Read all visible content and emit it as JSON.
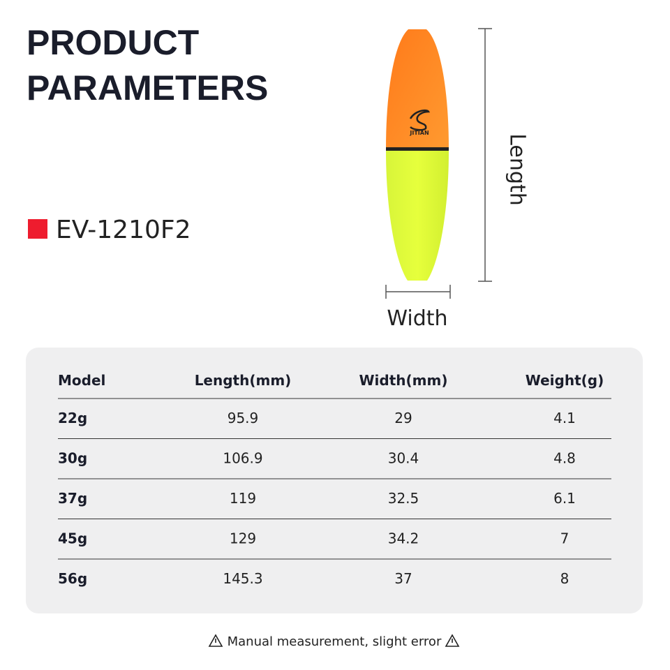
{
  "header": {
    "title_lines": [
      "PRODUCT",
      "PARAMETERS"
    ],
    "model": "EV-1210F2"
  },
  "product": {
    "logo_text": "JITIAN",
    "length_label": "Length",
    "width_label": "Width"
  },
  "table": {
    "columns": [
      "Model",
      "Length(mm)",
      "Width(mm)",
      "Weight(g)"
    ],
    "rows": [
      [
        "22g",
        "95.9",
        "29",
        "4.1"
      ],
      [
        "30g",
        "106.9",
        "30.4",
        "4.8"
      ],
      [
        "37g",
        "119",
        "32.5",
        "6.1"
      ],
      [
        "45g",
        "129",
        "34.2",
        "7"
      ],
      [
        "56g",
        "145.3",
        "37",
        "8"
      ]
    ]
  },
  "footer": {
    "note": "Manual measurement, slight error"
  }
}
